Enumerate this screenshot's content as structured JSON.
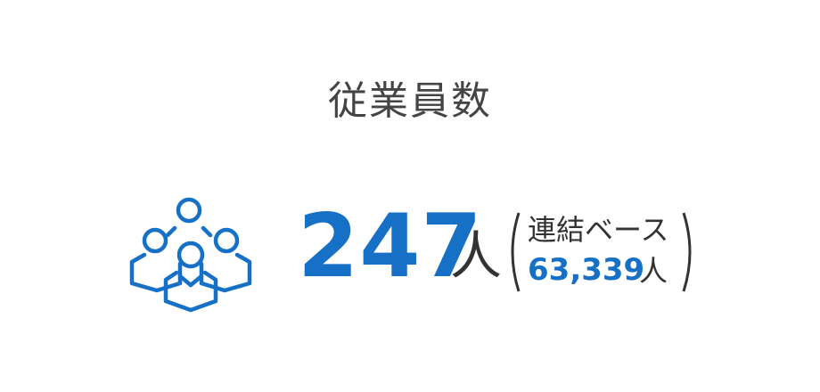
{
  "title": "従業員数",
  "employees": {
    "count": "247",
    "unit": "人",
    "icon": "people-group-icon",
    "accent_color": "#1670c6"
  },
  "consolidated": {
    "label": "連結ベース",
    "count": "63,339",
    "unit": "人"
  }
}
